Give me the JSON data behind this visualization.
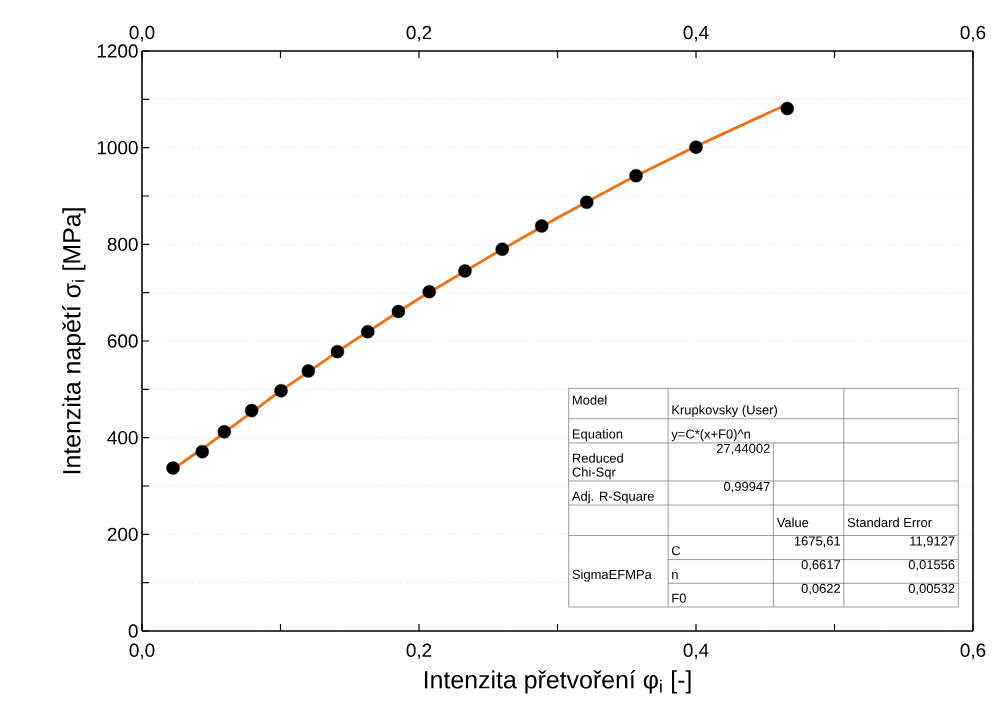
{
  "chart_data": {
    "type": "scatter",
    "xlabel": "Intenzita přetvoření φ$_{i}$ [-]",
    "ylabel": "Intenzita napětí σ$_{i}$ [MPa]",
    "xlim": [
      0,
      0.6
    ],
    "ylim": [
      0,
      1200
    ],
    "xticks": [
      {
        "value": 0,
        "label": "0,0"
      },
      {
        "value": 0.1,
        "label": null
      },
      {
        "value": 0.2,
        "label": "0,2"
      },
      {
        "value": 0.3,
        "label": null
      },
      {
        "value": 0.4,
        "label": "0,4"
      },
      {
        "value": 0.5,
        "label": null
      },
      {
        "value": 0.6,
        "label": "0,6"
      }
    ],
    "x2lim": [
      0,
      0.6
    ],
    "x2ticks": [
      {
        "value": 0,
        "label": "0,0"
      },
      {
        "value": 0.1,
        "label": null
      },
      {
        "value": 0.2,
        "label": "0,2"
      },
      {
        "value": 0.3,
        "label": null
      },
      {
        "value": 0.4,
        "label": "0,4"
      },
      {
        "value": 0.5,
        "label": null
      },
      {
        "value": 0.6,
        "label": "0,6"
      }
    ],
    "yticks": [
      0,
      {
        "value": 100,
        "label": null
      },
      200,
      {
        "value": 300,
        "label": null
      },
      400,
      {
        "value": 500,
        "label": null
      },
      600,
      {
        "value": 700,
        "label": null
      },
      800,
      {
        "value": 900,
        "label": null
      },
      1000,
      {
        "value": 1100,
        "label": null
      },
      1200
    ],
    "grid": "y",
    "series": [
      {
        "color": "#000000",
        "marker": "circle",
        "x": [
          0.0224,
          0.0435,
          0.0594,
          0.0792,
          0.1004,
          0.1201,
          0.1411,
          0.163,
          0.1851,
          0.2074,
          0.2332,
          0.2601,
          0.2886,
          0.3211,
          0.3567,
          0.4,
          0.4659
        ],
        "values": [
          337,
          371,
          412,
          456,
          497,
          538,
          578,
          619,
          661,
          702,
          745,
          790,
          838,
          887,
          942,
          1001,
          1081
        ]
      },
      {
        "type": "line",
        "color": "#f07010",
        "marker": "none",
        "line_style": "solid",
        "x": [
          0.0224,
          0.05,
          0.1,
          0.15,
          0.2,
          0.25,
          0.3,
          0.35,
          0.4,
          0.4659
        ],
        "values": [
          335,
          390,
          497,
          595,
          688,
          773,
          855,
          932,
          1003,
          1090
        ]
      }
    ],
    "annotations": [
      "Model",
      "Krupkovsky (User)",
      "Equation",
      "y=C*(x+F0)^n",
      "Reduced Chi-Sqr",
      "27,44002",
      "Adj. R-Square",
      "0,99947",
      "Value",
      "Standard Error",
      "SigmaEFMPa",
      "C",
      "1675,61",
      "11,9127",
      "n",
      "0,6617",
      "0,01556",
      "F0",
      "0,0622",
      "0,00532"
    ]
  }
}
